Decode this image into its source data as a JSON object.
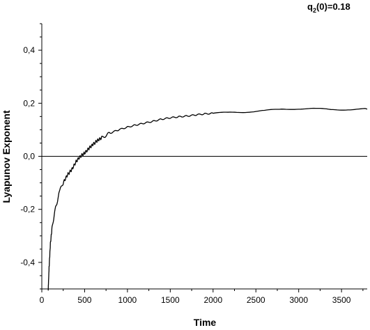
{
  "chart_data": {
    "type": "line",
    "title": "",
    "annotation": {
      "prefix": "q",
      "subscript": "2",
      "suffix": "(0)=0.18"
    },
    "xlabel": "Time",
    "ylabel": "Lyapunov Exponent",
    "xlim": [
      0,
      3800
    ],
    "ylim": [
      -0.5,
      0.5
    ],
    "x_ticks": [
      0,
      500,
      1000,
      1500,
      2000,
      2500,
      3000,
      3500
    ],
    "x_tick_labels": [
      "0",
      "500",
      "1000",
      "1500",
      "2000",
      "2500",
      "3000",
      "3500"
    ],
    "y_ticks": [
      -0.4,
      -0.2,
      0.0,
      0.2,
      0.4
    ],
    "y_tick_labels": [
      "-0,4",
      "-0,2",
      "0,0",
      "0,2",
      "0,4"
    ],
    "grid": false,
    "reference_line_y": 0.0,
    "series": [
      {
        "color": "#000000",
        "x": [
          75,
          85,
          100,
          120,
          150,
          180,
          210,
          250,
          300,
          350,
          400,
          450,
          500,
          550,
          600,
          650,
          700,
          800,
          900,
          1000,
          1100,
          1200,
          1300,
          1400,
          1500,
          1600,
          1700,
          1800,
          1900,
          2000,
          2200,
          2400,
          2600,
          2800,
          3000,
          3200,
          3400,
          3600,
          3800
        ],
        "y": [
          -0.5,
          -0.42,
          -0.33,
          -0.27,
          -0.21,
          -0.17,
          -0.13,
          -0.1,
          -0.07,
          -0.05,
          -0.02,
          0.0,
          0.012,
          0.03,
          0.045,
          0.06,
          0.07,
          0.088,
          0.1,
          0.11,
          0.118,
          0.125,
          0.132,
          0.14,
          0.145,
          0.149,
          0.152,
          0.156,
          0.16,
          0.162,
          0.165,
          0.168,
          0.172,
          0.177,
          0.18,
          0.179,
          0.176,
          0.177,
          0.178
        ]
      }
    ]
  }
}
